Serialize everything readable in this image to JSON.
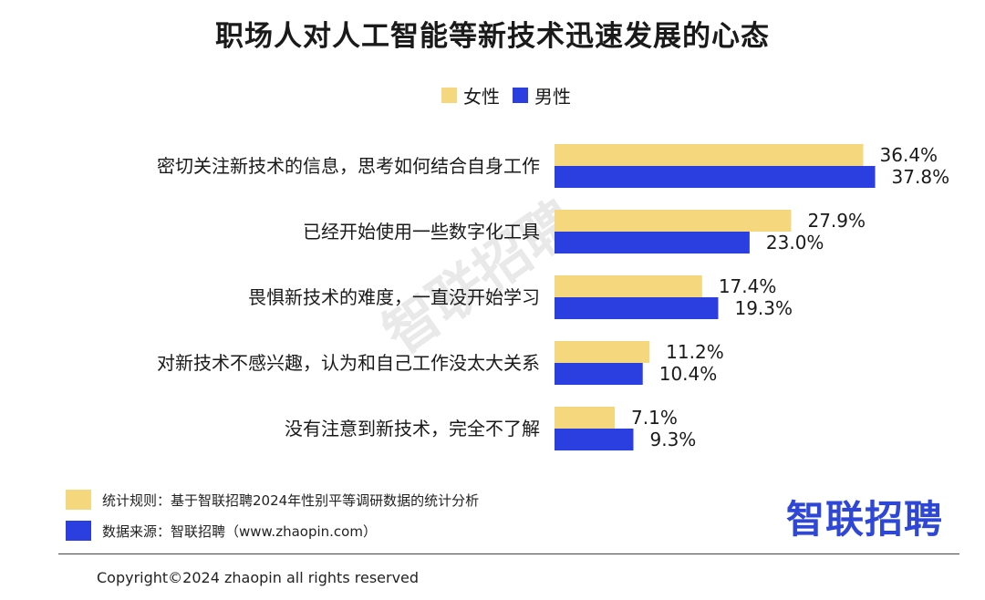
{
  "colors": {
    "female": "#f5d77e",
    "male": "#2b3fe0"
  },
  "legend": {
    "female": "女性",
    "male": "男性"
  },
  "watermark": "智联招聘",
  "chart_data": {
    "type": "bar",
    "orientation": "horizontal",
    "title": "职场人对人工智能等新技术迅速发展的心态",
    "categories": [
      "密切关注新技术的信息，思考如何结合自身工作",
      "已经开始使用一些数字化工具",
      "畏惧新技术的难度，一直没开始学习",
      "对新技术不感兴趣，认为和自己工作没太大关系",
      "没有注意到新技术，完全不了解"
    ],
    "series": [
      {
        "name": "女性",
        "values": [
          36.4,
          27.9,
          17.4,
          11.2,
          7.1
        ],
        "labels": [
          "36.4%",
          "27.9%",
          "17.4%",
          "11.2%",
          "7.1%"
        ]
      },
      {
        "name": "男性",
        "values": [
          37.8,
          23.0,
          19.3,
          10.4,
          9.3
        ],
        "labels": [
          "37.8%",
          "23.0%",
          "19.3%",
          "10.4%",
          "9.3%"
        ]
      }
    ],
    "xlim": [
      0,
      40
    ],
    "legend_position": "top-center",
    "grid": false
  },
  "notes": {
    "rule": "统计规则：基于智联招聘2024年性别平等调研数据的统计分析",
    "source": "数据来源：智联招聘（www.zhaopin.com）"
  },
  "brand": "智联招聘",
  "copyright": "Copyright©2024 zhaopin all rights reserved"
}
